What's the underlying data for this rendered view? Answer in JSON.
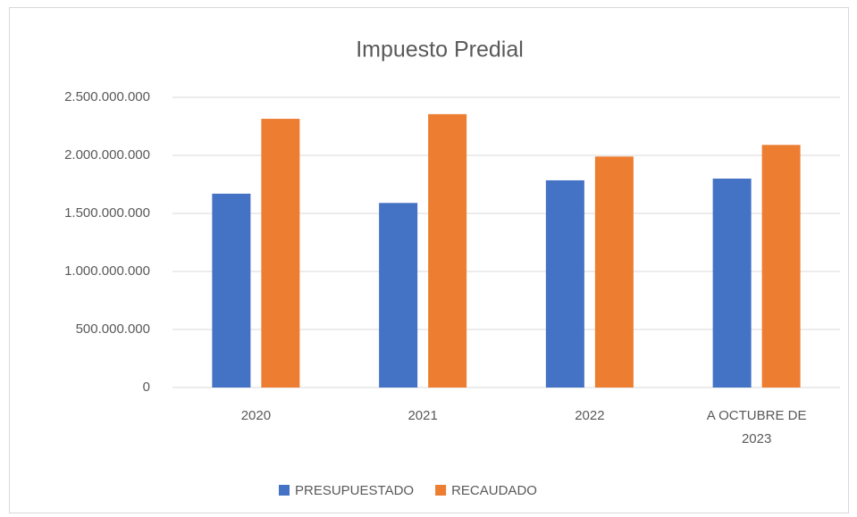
{
  "chart_data": {
    "type": "bar",
    "title": "Impuesto Predial",
    "categories": [
      "2020",
      "2021",
      "2022",
      "A OCTUBRE DE 2023"
    ],
    "series": [
      {
        "name": "PRESUPUESTADO",
        "color": "#4472c4",
        "values": [
          1670000000,
          1590000000,
          1785000000,
          1800000000
        ]
      },
      {
        "name": "RECAUDADO",
        "color": "#ed7d31",
        "values": [
          2315000000,
          2355000000,
          1990000000,
          2090000000
        ]
      }
    ],
    "ylim": [
      0,
      2500000000
    ],
    "yticks": [
      0,
      {
        "value": 500000000,
        "label": "500.000.000"
      },
      {
        "value": 1000000000,
        "label": "1.000.000.000"
      },
      {
        "value": 1500000000,
        "label": "1.500.000.000"
      },
      {
        "value": 2000000000,
        "label": "2.000.000.000"
      },
      {
        "value": 2500000000,
        "label": "2.500.000.000"
      }
    ],
    "grid": true,
    "legend": "bottom"
  }
}
